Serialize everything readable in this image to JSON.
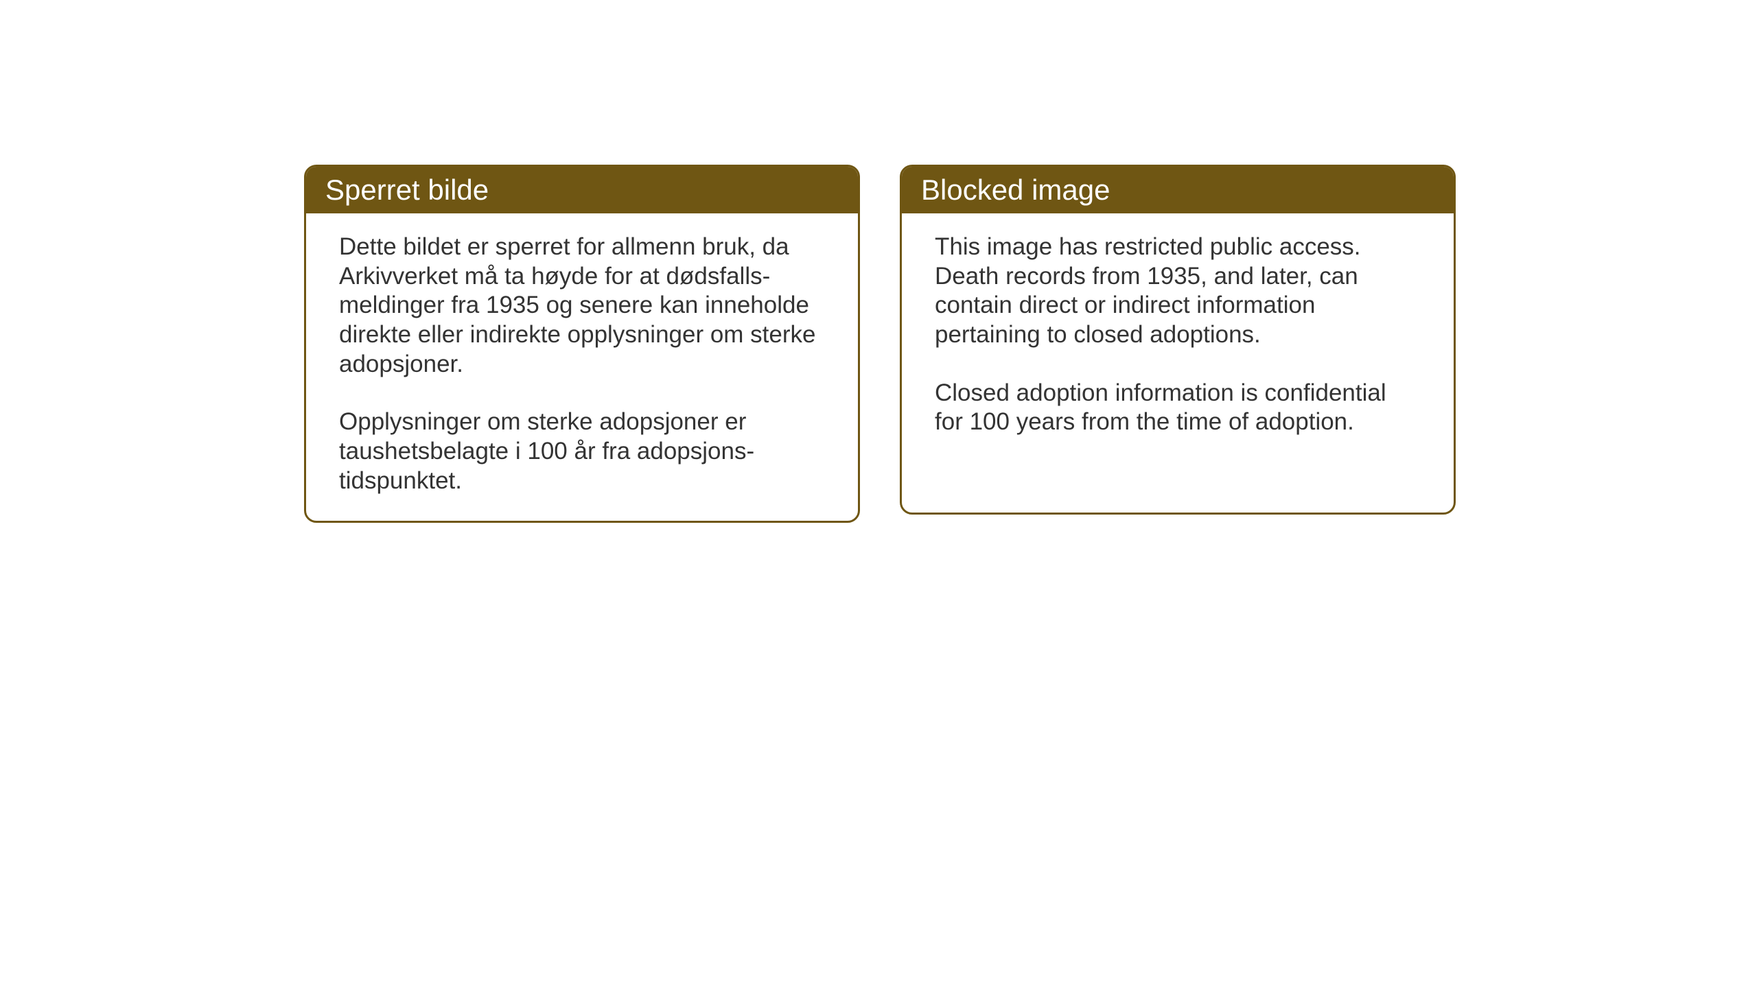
{
  "layout": {
    "background_color": "#ffffff",
    "card_border_color": "#6f5613",
    "card_header_bg_color": "#6f5613",
    "card_header_text_color": "#ffffff",
    "card_body_text_color": "#333333",
    "card_border_radius": 18,
    "heading_fontsize": 42,
    "body_fontsize": 35
  },
  "cards": {
    "norwegian": {
      "title": "Sperret bilde",
      "paragraph1": "Dette bildet er sperret for allmenn bruk, da Arkivverket må ta høyde for at dødsfalls-meldinger fra 1935 og senere kan inneholde direkte eller indirekte opplysninger om sterke adopsjoner.",
      "paragraph2": "Opplysninger om sterke adopsjoner er taushetsbelagte i 100 år fra adopsjons-tidspunktet."
    },
    "english": {
      "title": "Blocked image",
      "paragraph1": "This image has restricted public access. Death records from 1935, and later, can contain direct or indirect information pertaining to closed adoptions.",
      "paragraph2": "Closed adoption information is confidential for 100 years from the time of adoption."
    }
  }
}
